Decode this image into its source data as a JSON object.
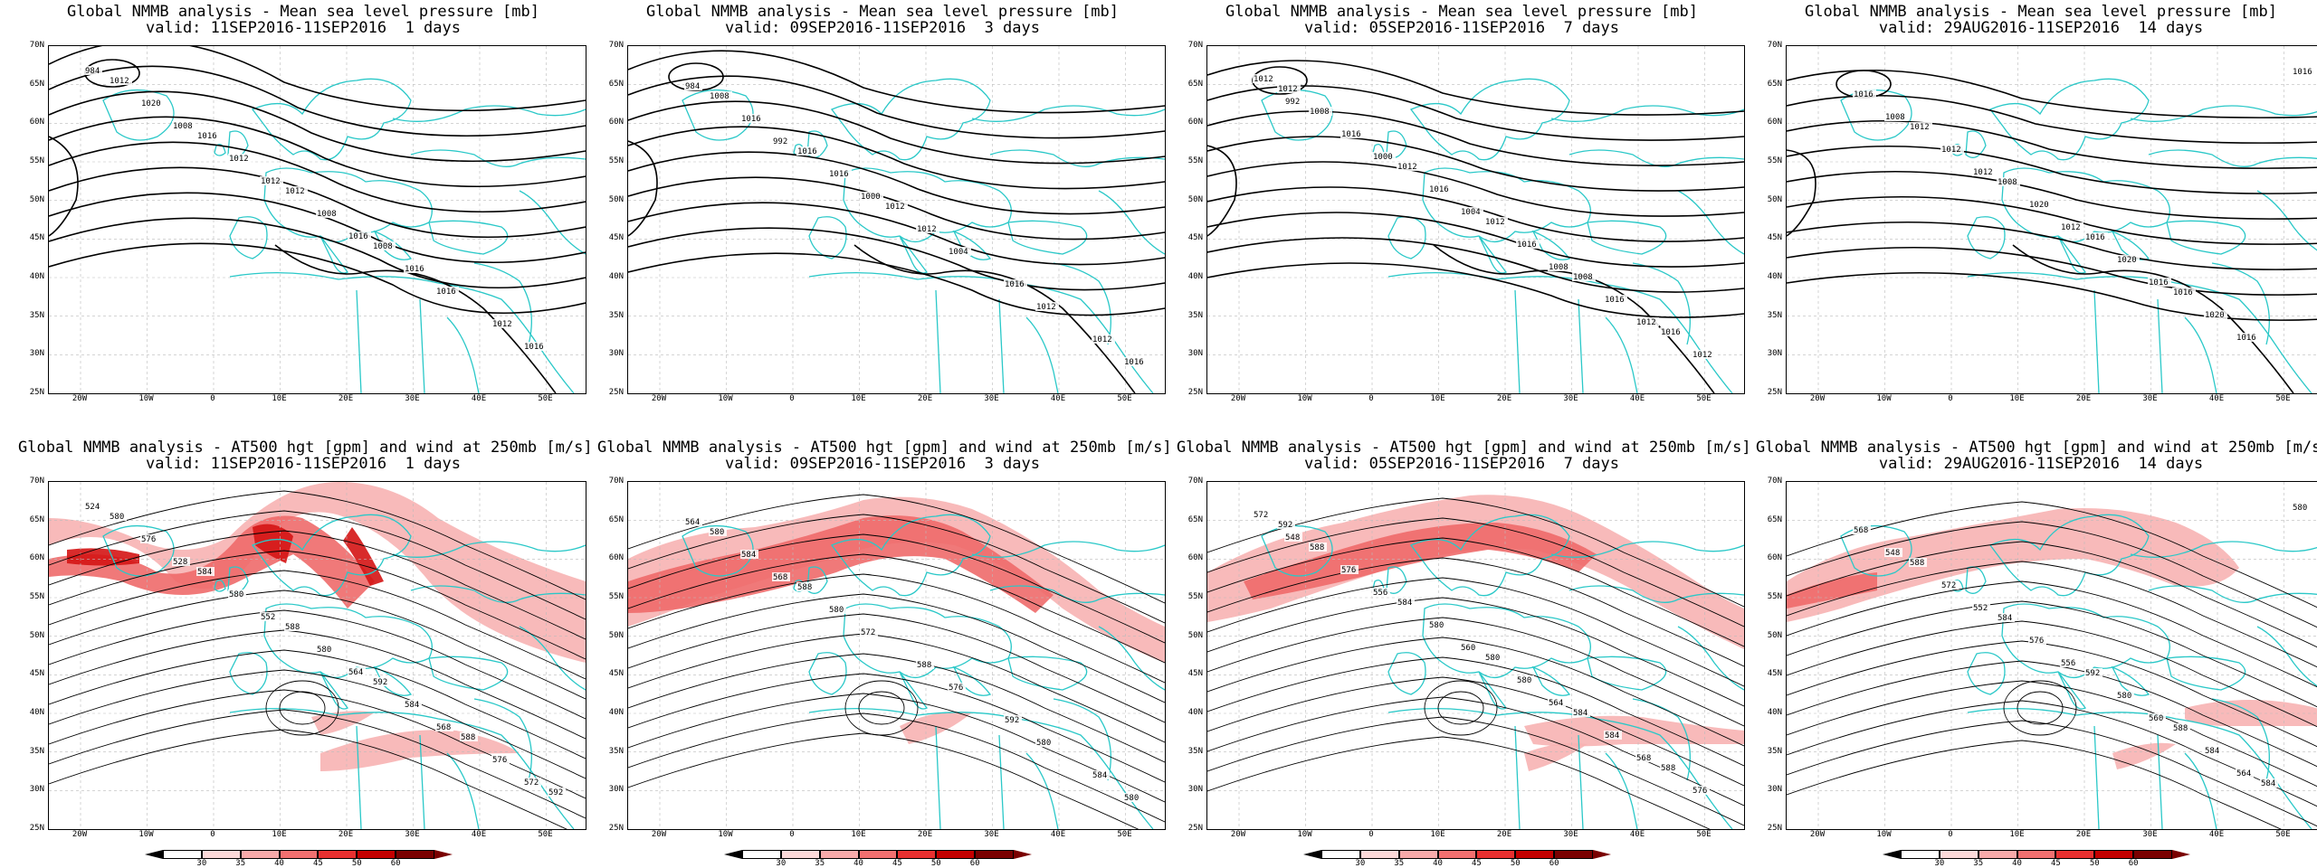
{
  "rows": [
    {
      "kind": "mslp",
      "panels": [
        {
          "title_line1": "Global NMMB analysis - Mean sea level pressure [mb]",
          "title_line2": "valid: 11SEP2016-11SEP2016  1 days",
          "contour_labels": [
            "984",
            "1008",
            "1012",
            "1016",
            "1016",
            "1016",
            "1020",
            "1012",
            "1008",
            "1016",
            "1012",
            "1012",
            "1016",
            "1012",
            "1008"
          ]
        },
        {
          "title_line1": "Global NMMB analysis - Mean sea level pressure [mb]",
          "title_line2": "valid: 09SEP2016-11SEP2016  3 days",
          "contour_labels": [
            "984",
            "992",
            "1000",
            "1004",
            "1012",
            "1016",
            "1016",
            "1016",
            "1012",
            "1016",
            "1012",
            "1008",
            "1016",
            "1012"
          ]
        },
        {
          "title_line1": "Global NMMB analysis - Mean sea level pressure [mb]",
          "title_line2": "valid: 05SEP2016-11SEP2016  7 days",
          "contour_labels": [
            "992",
            "1000",
            "1004",
            "1008",
            "1012",
            "1012",
            "1016",
            "1016",
            "1016",
            "1016",
            "1012",
            "1008",
            "1012",
            "1012",
            "1008",
            "1016",
            "1012"
          ]
        },
        {
          "title_line1": "Global NMMB analysis - Mean sea level pressure [mb]",
          "title_line2": "valid: 29AUG2016-11SEP2016  14 days",
          "contour_labels": [
            "1008",
            "1012",
            "1012",
            "1016",
            "1016",
            "1016",
            "1012",
            "1020",
            "1020",
            "1020",
            "1016",
            "1012",
            "1008",
            "1016",
            "1016"
          ]
        }
      ]
    },
    {
      "kind": "at500",
      "panels": [
        {
          "title_line1": "Global NMMB analysis - AT500 hgt [gpm] and wind at 250mb [m/s]",
          "title_line2": "valid: 11SEP2016-11SEP2016  1 days",
          "contour_labels": [
            "524",
            "528",
            "552",
            "564",
            "568",
            "572",
            "576",
            "580",
            "580",
            "584",
            "576",
            "580",
            "584",
            "588",
            "592",
            "588",
            "592"
          ]
        },
        {
          "title_line1": "Global NMMB analysis - AT500 hgt [gpm] and wind at 250mb [m/s]",
          "title_line2": "valid: 09SEP2016-11SEP2016  3 days",
          "contour_labels": [
            "564",
            "568",
            "572",
            "576",
            "580",
            "580",
            "584",
            "580",
            "588",
            "592",
            "584",
            "580",
            "588"
          ]
        },
        {
          "title_line1": "Global NMMB analysis - AT500 hgt [gpm] and wind at 250mb [m/s]",
          "title_line2": "valid: 05SEP2016-11SEP2016  7 days",
          "contour_labels": [
            "548",
            "556",
            "560",
            "564",
            "568",
            "572",
            "576",
            "580",
            "580",
            "584",
            "576",
            "588",
            "584",
            "580",
            "584",
            "588",
            "592"
          ]
        },
        {
          "title_line1": "Global NMMB analysis - AT500 hgt [gpm] and wind at 250mb [m/s]",
          "title_line2": "valid: 29AUG2016-11SEP2016  14 days",
          "contour_labels": [
            "548",
            "552",
            "556",
            "560",
            "564",
            "568",
            "572",
            "576",
            "580",
            "584",
            "580",
            "588",
            "584",
            "592",
            "588",
            "584"
          ]
        }
      ]
    }
  ],
  "lat_labels": [
    "70N",
    "65N",
    "60N",
    "55N",
    "50N",
    "45N",
    "40N",
    "35N",
    "30N",
    "25N"
  ],
  "lon_labels": [
    "20W",
    "10W",
    "0",
    "10E",
    "20E",
    "30E",
    "40E",
    "50E"
  ],
  "colorbar": {
    "ticks": [
      "30",
      "35",
      "40",
      "45",
      "50",
      "60"
    ],
    "colors": [
      "#ffffff",
      "#fcd9d9",
      "#f8aaaa",
      "#f27070",
      "#e83030",
      "#c40000",
      "#7a0000"
    ]
  },
  "colors": {
    "coast": "#2ac8c8",
    "contour": "#000000",
    "jet_light": "#f7b3b3",
    "jet_mid": "#ee6a6a",
    "jet_dark": "#d41414"
  }
}
